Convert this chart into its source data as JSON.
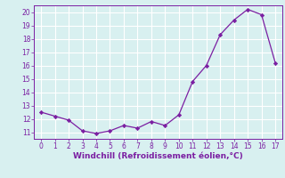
{
  "x": [
    0,
    1,
    2,
    3,
    4,
    5,
    6,
    7,
    8,
    9,
    10,
    11,
    12,
    13,
    14,
    15,
    16,
    17
  ],
  "y": [
    12.5,
    12.2,
    11.9,
    11.1,
    10.9,
    11.1,
    11.5,
    11.3,
    11.8,
    11.5,
    12.3,
    14.8,
    16.0,
    18.3,
    19.4,
    20.2,
    19.8,
    16.2
  ],
  "line_color": "#7B1FA2",
  "marker_color": "#7B1FA2",
  "bg_color": "#d8f0f0",
  "grid_color": "#b8dede",
  "xlabel": "Windchill (Refroidissement éolien,°C)",
  "xlim": [
    -0.5,
    17.5
  ],
  "ylim": [
    10.5,
    20.5
  ],
  "yticks": [
    11,
    12,
    13,
    14,
    15,
    16,
    17,
    18,
    19,
    20
  ],
  "xticks": [
    0,
    1,
    2,
    3,
    4,
    5,
    6,
    7,
    8,
    9,
    10,
    11,
    12,
    13,
    14,
    15,
    16,
    17
  ],
  "label_fontsize": 6.5,
  "tick_fontsize": 5.5
}
